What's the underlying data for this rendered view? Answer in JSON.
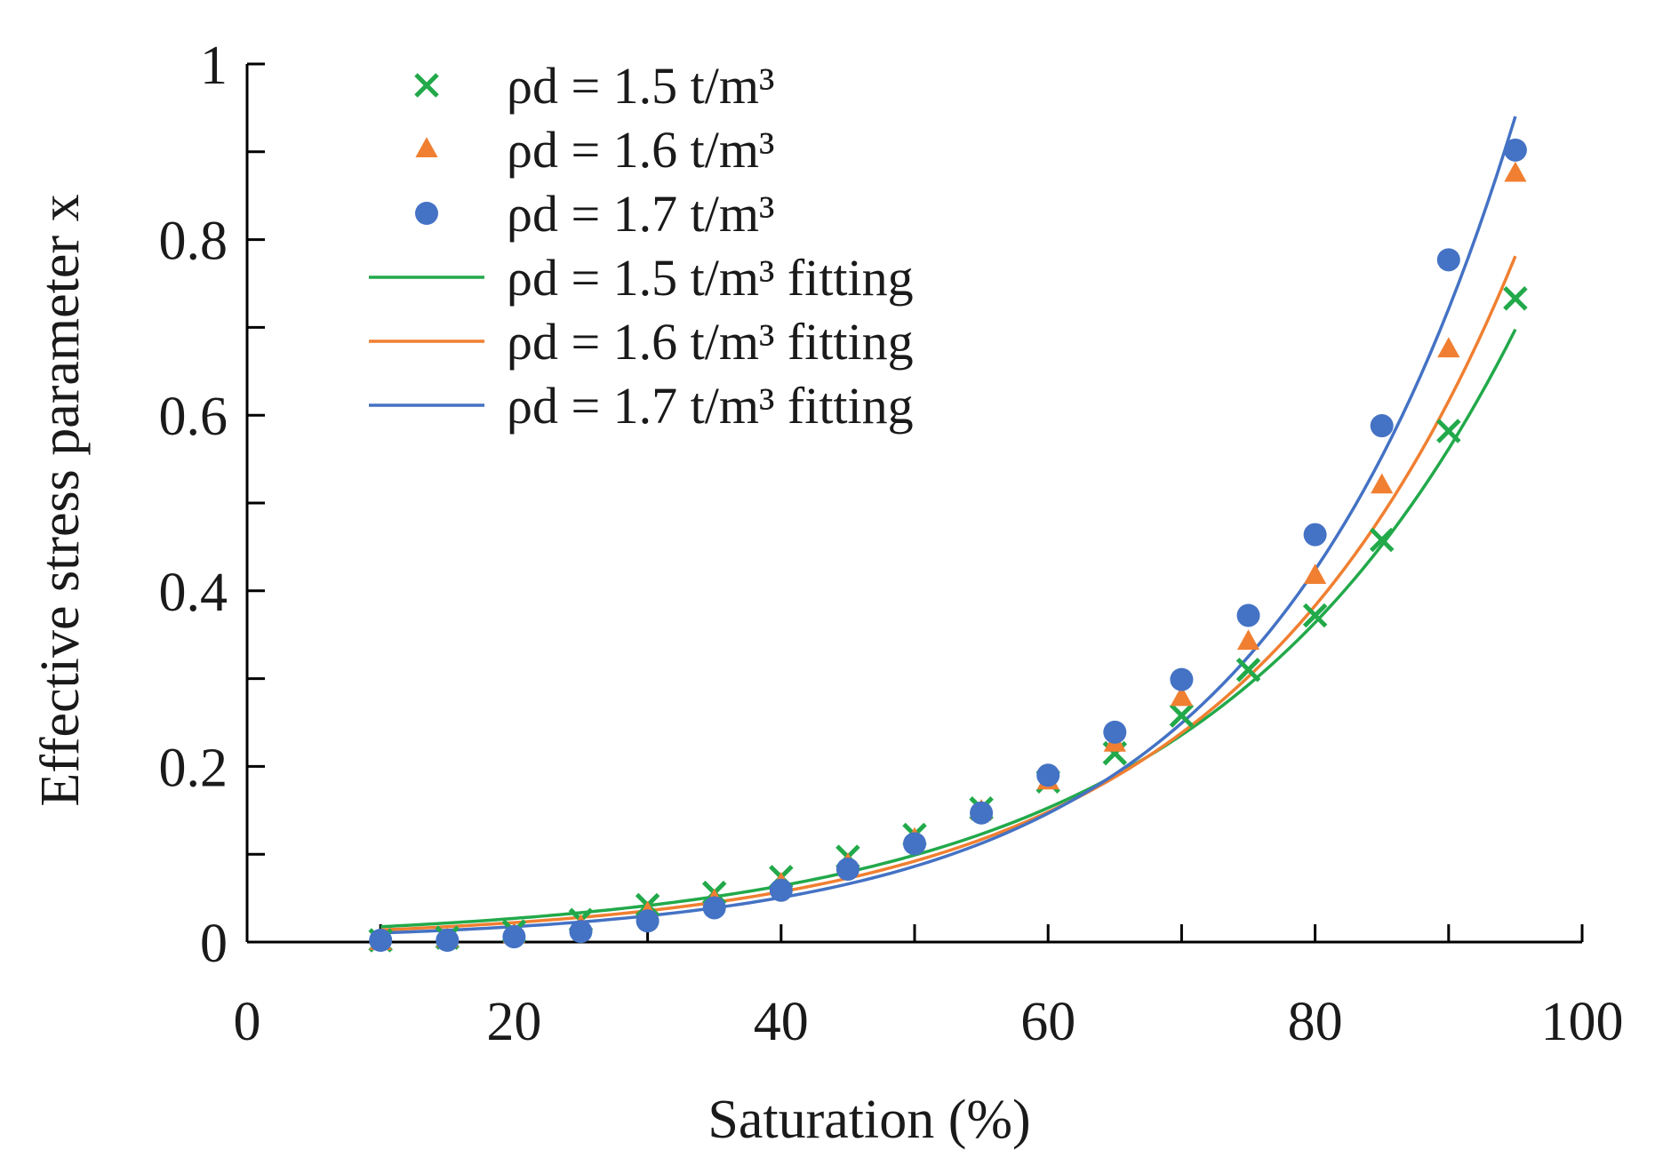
{
  "chart_data": {
    "type": "scatter",
    "xlabel": "Saturation (%)",
    "ylabel": "Effective stress parameter x",
    "xlim": [
      0,
      100
    ],
    "ylim": [
      0,
      1
    ],
    "x_ticks": [
      0,
      20,
      40,
      60,
      80,
      100
    ],
    "y_ticks": [
      0,
      0.2,
      0.4,
      0.6,
      0.8,
      1
    ],
    "y_tick_labels": [
      "0",
      "0.2",
      "0.4",
      "0.6",
      "0.8",
      "1"
    ],
    "grid": false,
    "legend_position": "top-left",
    "x": [
      10,
      15,
      20,
      25,
      30,
      35,
      40,
      45,
      50,
      55,
      60,
      65,
      70,
      75,
      80,
      85,
      90,
      95
    ],
    "series": [
      {
        "name": "ρd = 1.5 t/m³",
        "kind": "marker",
        "marker": "cross",
        "color": "#22a94a",
        "values": [
          0.002,
          0.005,
          0.012,
          0.025,
          0.042,
          0.056,
          0.074,
          0.097,
          0.122,
          0.152,
          0.183,
          0.215,
          0.258,
          0.31,
          0.372,
          0.458,
          0.582,
          0.733
        ]
      },
      {
        "name": "ρd = 1.6 t/m³",
        "kind": "marker",
        "marker": "triangle",
        "color": "#f07f31",
        "values": [
          0.0,
          0.003,
          0.008,
          0.018,
          0.033,
          0.047,
          0.066,
          0.088,
          0.117,
          0.149,
          0.183,
          0.226,
          0.278,
          0.342,
          0.417,
          0.52,
          0.675,
          0.875
        ]
      },
      {
        "name": "ρd = 1.7 t/m³",
        "kind": "marker",
        "marker": "circle",
        "color": "#4472c4",
        "values": [
          0.002,
          0.002,
          0.006,
          0.012,
          0.024,
          0.039,
          0.059,
          0.083,
          0.112,
          0.147,
          0.19,
          0.239,
          0.299,
          0.372,
          0.464,
          0.588,
          0.777,
          0.902
        ]
      },
      {
        "name": "ρd = 1.5 t/m³ fitting",
        "kind": "line",
        "color": "#22a94a",
        "a": 0.0113,
        "b": 0.0434
      },
      {
        "name": "ρd = 1.6 t/m³ fitting",
        "kind": "line",
        "color": "#f07f31",
        "a": 0.00857,
        "b": 0.0475
      },
      {
        "name": "ρd = 1.7 t/m³ fitting",
        "kind": "line",
        "color": "#4472c4",
        "a": 0.00606,
        "b": 0.0531
      }
    ],
    "fit_x_range": [
      10,
      95
    ]
  }
}
